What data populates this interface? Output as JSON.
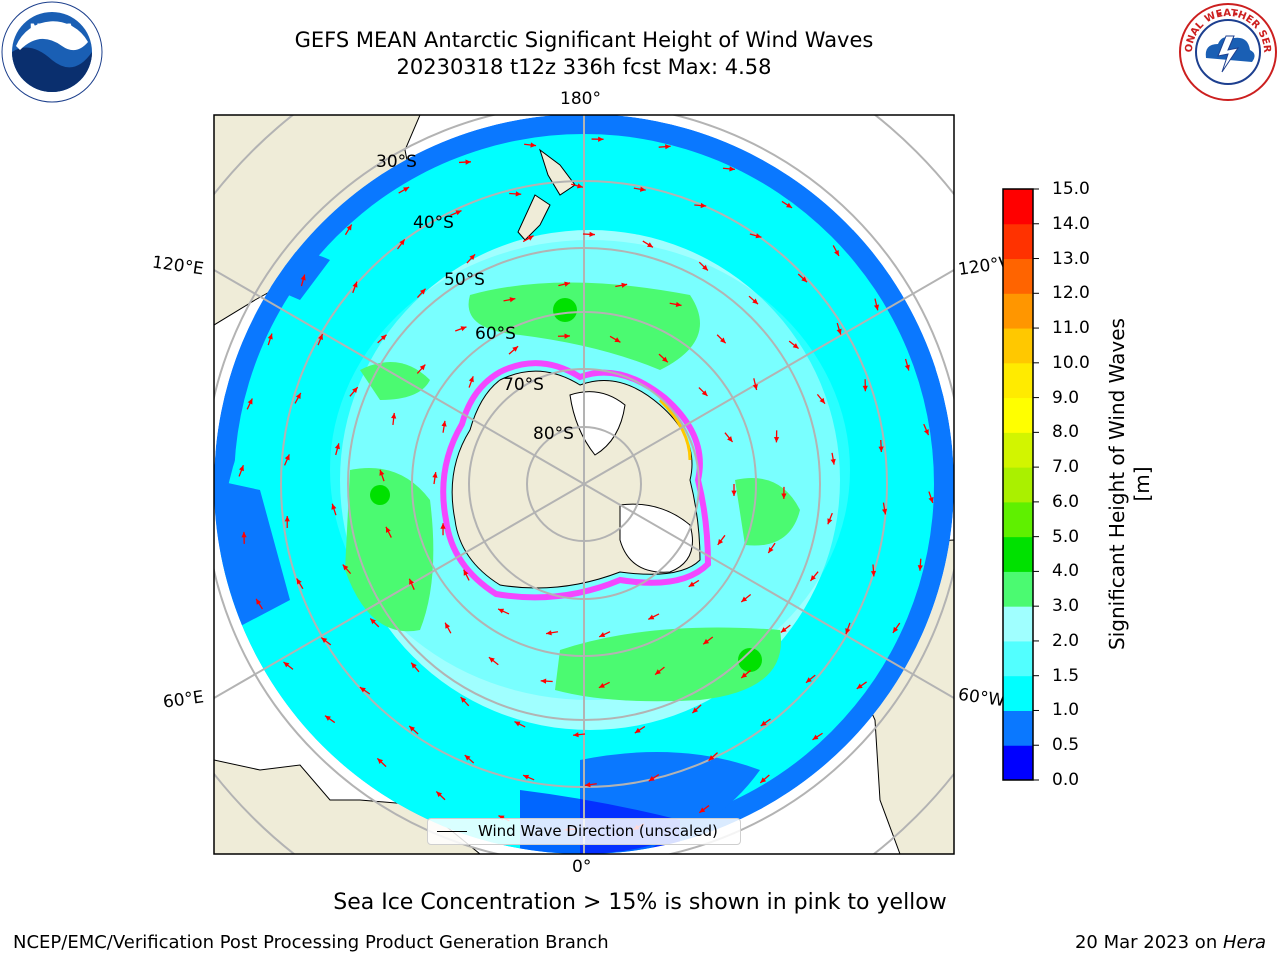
{
  "title": {
    "line1": "GEFS MEAN Antarctic Significant Height of Wind Waves",
    "line2": "20230318 t12z 336h fcst   Max: 4.58"
  },
  "map": {
    "projection": "south-polar-stereographic",
    "longitude_labels": {
      "top": "180°",
      "bottom": "0°",
      "upper_left": "120°E",
      "upper_right": "120°W",
      "lower_left": "60°E",
      "lower_right": "60°W"
    },
    "latitude_labels": [
      "30°S",
      "40°S",
      "50°S",
      "60°S",
      "70°S",
      "80°S"
    ],
    "colors": {
      "land": "#efecd8",
      "ice_shelf": "#ffffff",
      "ocean_deep_blue": "#0000ff",
      "ocean_blue": "#0a78ff",
      "ocean_cyan": "#00ffff",
      "ocean_light_cyan": "#a0ffff",
      "ocean_green": "#4bfa71",
      "arrows": "#ff0000",
      "gridlines": "#b3b3b3",
      "sea_ice": "#ff33ff"
    }
  },
  "colorbar": {
    "label": "Significant Height of Wind Waves [m]",
    "ticks": [
      "0.0",
      "0.5",
      "1.0",
      "1.5",
      "2.0",
      "3.0",
      "4.0",
      "5.0",
      "6.0",
      "7.0",
      "8.0",
      "9.0",
      "10.0",
      "11.0",
      "12.0",
      "13.0",
      "14.0",
      "15.0"
    ],
    "colors": [
      "#0000ff",
      "#0a78ff",
      "#00ffff",
      "#52ffff",
      "#a0ffff",
      "#4bfa71",
      "#00e100",
      "#5ff000",
      "#aaf000",
      "#d2f500",
      "#ffff00",
      "#ffeb00",
      "#ffc800",
      "#ff9600",
      "#ff6400",
      "#ff3200",
      "#ff0000"
    ]
  },
  "legend": {
    "label": "Wind Wave Direction (unscaled)"
  },
  "note": "Sea Ice Concentration > 15% is shown in pink to yellow",
  "footer": {
    "left": "NCEP/EMC/Verification Post Processing Product Generation Branch",
    "right_date": "20 Mar 2023 on ",
    "right_host": "Hera"
  },
  "logos": {
    "left": "NOAA",
    "right_ring_text": "NATIONAL WEATHER SERVICE"
  }
}
